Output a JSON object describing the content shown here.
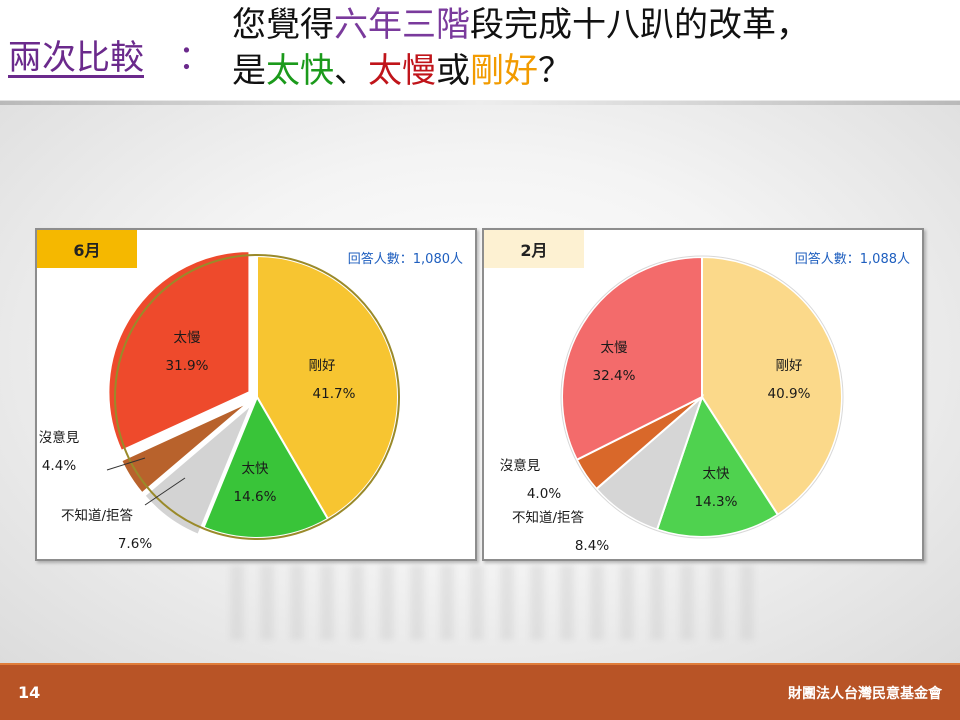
{
  "header": {
    "label": "兩次比較",
    "colon": "：",
    "question_line1": [
      "您覺得",
      "六年三階",
      "段完成十八趴的改革，"
    ],
    "question_line2": [
      "是",
      "太快",
      "、",
      "太慢",
      "或",
      "剛好",
      "？"
    ]
  },
  "colors": {
    "label": "#6b2a8c",
    "six_year": "#7a3a9c",
    "fast": "#1b9a1b",
    "slow": "#c0141a",
    "just_right": "#f29b00",
    "footer": "#b85426",
    "respondents": "#1f5fbf"
  },
  "panels": [
    {
      "tag": "6月",
      "respondents": "回答人數：1,080人"
    },
    {
      "tag": "2月",
      "respondents": "回答人數：1,088人"
    }
  ],
  "chart_data": [
    {
      "type": "pie",
      "title": "6月",
      "categories": [
        "剛好",
        "太快",
        "不知道/拒答",
        "沒意見",
        "太慢"
      ],
      "values": [
        41.7,
        14.6,
        7.6,
        4.4,
        31.9
      ],
      "labels": [
        "41.7%",
        "14.6%",
        "7.6%",
        "4.4%",
        "31.9%"
      ],
      "colors": [
        "#f7c531",
        "#39c439",
        "#d3d3d3",
        "#b8622c",
        "#ee4a2c"
      ],
      "annotation": "回答人數：1,080人"
    },
    {
      "type": "pie",
      "title": "2月",
      "categories": [
        "剛好",
        "太快",
        "不知道/拒答",
        "沒意見",
        "太慢"
      ],
      "values": [
        40.9,
        14.3,
        8.4,
        4.0,
        32.4
      ],
      "labels": [
        "40.9%",
        "14.3%",
        "8.4%",
        "4.0%",
        "32.4%"
      ],
      "colors": [
        "#fbd98a",
        "#4fd24f",
        "#d6d6d6",
        "#d9682a",
        "#f36b6b"
      ],
      "annotation": "回答人數：1,088人"
    }
  ],
  "footer": {
    "page": "14",
    "org": "財團法人台灣民意基金會"
  }
}
